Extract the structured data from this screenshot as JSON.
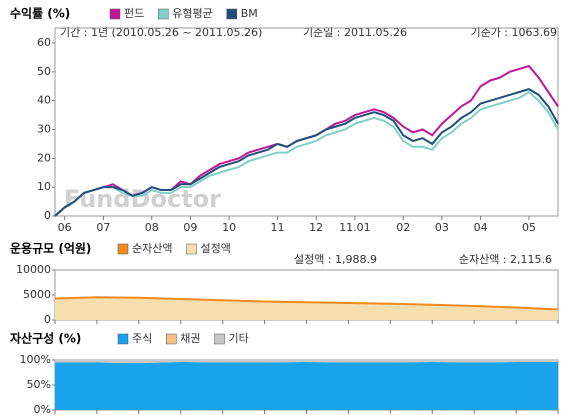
{
  "chart_data": [
    {
      "type": "line",
      "title": "수익률 (%)",
      "subtitle": "기간 : 1년 (2010.05.26 ~ 2011.05.26)",
      "base_date": "기준일 : 2011.05.26",
      "base_price": "기준가 : 1063.69",
      "watermark": "FundDoctor",
      "categories": [
        null,
        "06",
        null,
        null,
        null,
        "07",
        null,
        null,
        null,
        null,
        "08",
        null,
        null,
        null,
        "09",
        null,
        null,
        null,
        "10",
        null,
        null,
        null,
        null,
        "11",
        null,
        null,
        null,
        "12",
        null,
        null,
        null,
        "11.01",
        null,
        null,
        null,
        null,
        "02",
        null,
        null,
        null,
        "03",
        null,
        null,
        null,
        "04",
        null,
        null,
        null,
        null,
        "05",
        null,
        null,
        null
      ],
      "series": [
        {
          "name": "펀드",
          "color": "#c0169a",
          "values": [
            0,
            3,
            5,
            8,
            9,
            10,
            11,
            9,
            7,
            8,
            10,
            9,
            9,
            12,
            11,
            14,
            16,
            18,
            19,
            20,
            22,
            23,
            24,
            25,
            24,
            26,
            27,
            28,
            30,
            32,
            33,
            35,
            36,
            37,
            36,
            34,
            31,
            29,
            30,
            28,
            32,
            35,
            38,
            40,
            45,
            47,
            48,
            50,
            51,
            52,
            48,
            43,
            38
          ]
        },
        {
          "name": "유형평균",
          "color": "#7fd0c8",
          "values": [
            0,
            3,
            5,
            8,
            9,
            10,
            10,
            8,
            7,
            7,
            9,
            8,
            8,
            10,
            10,
            12,
            14,
            15,
            16,
            17,
            19,
            20,
            21,
            22,
            22,
            24,
            25,
            26,
            28,
            29,
            30,
            32,
            33,
            34,
            33,
            31,
            26,
            24,
            24,
            23,
            27,
            29,
            32,
            34,
            37,
            38,
            39,
            40,
            41,
            43,
            40,
            36,
            30
          ]
        },
        {
          "name": "BM",
          "color": "#1f4f7a",
          "values": [
            0,
            3,
            5,
            8,
            9,
            10,
            10,
            9,
            7,
            8,
            10,
            9,
            9,
            11,
            11,
            13,
            15,
            17,
            18,
            19,
            21,
            22,
            23,
            25,
            24,
            26,
            27,
            28,
            30,
            31,
            32,
            34,
            35,
            36,
            35,
            33,
            28,
            26,
            27,
            25,
            29,
            31,
            34,
            36,
            39,
            40,
            41,
            42,
            43,
            44,
            42,
            38,
            32
          ]
        }
      ],
      "ylim": [
        0,
        60
      ],
      "yticks": [
        0,
        10,
        20,
        30,
        40,
        50,
        60
      ],
      "grid": false
    },
    {
      "type": "area",
      "title": "운용규모 (억원)",
      "annotations": [
        "설정액 : 1,988.9",
        "순자산액 : 2,115.6"
      ],
      "categories": [
        null,
        null,
        null,
        null,
        null,
        null,
        null,
        null,
        null,
        null,
        null,
        null,
        null
      ],
      "series": [
        {
          "name": "순자산액",
          "color": "#f28a1e",
          "values": [
            4300,
            4550,
            4450,
            4200,
            3950,
            3700,
            3550,
            3400,
            3250,
            3050,
            2800,
            2500,
            2115.6
          ]
        },
        {
          "name": "설정액",
          "color": "#f7deae",
          "values": [
            4200,
            4450,
            4350,
            4100,
            3850,
            3600,
            3450,
            3300,
            3150,
            2950,
            2700,
            2400,
            1988.9
          ]
        }
      ],
      "ylim": [
        0,
        10000
      ],
      "yticks": [
        0,
        5000,
        10000
      ]
    },
    {
      "type": "stacked_area",
      "title": "자산구성 (%)",
      "categories": [
        null,
        null,
        null,
        null,
        null,
        null,
        null,
        null,
        null,
        null,
        null,
        null,
        null
      ],
      "series": [
        {
          "name": "주식",
          "color": "#1aa3ec",
          "values": [
            95,
            95,
            94,
            96,
            95,
            95,
            96,
            95,
            95,
            96,
            95,
            96,
            96
          ]
        },
        {
          "name": "채권",
          "color": "#f5bf86",
          "values": [
            0,
            0,
            0,
            0,
            0,
            0,
            0,
            0,
            0,
            0,
            0,
            0,
            0
          ]
        },
        {
          "name": "기타",
          "color": "#c8c8c8",
          "values": [
            5,
            5,
            6,
            4,
            5,
            5,
            4,
            5,
            5,
            4,
            5,
            4,
            4
          ]
        }
      ],
      "ylim": [
        0,
        100
      ],
      "yticks": [
        {
          "value": 0,
          "label": "0%"
        },
        {
          "value": 50,
          "label": "50%"
        },
        {
          "value": 100,
          "label": "100%"
        }
      ]
    }
  ]
}
